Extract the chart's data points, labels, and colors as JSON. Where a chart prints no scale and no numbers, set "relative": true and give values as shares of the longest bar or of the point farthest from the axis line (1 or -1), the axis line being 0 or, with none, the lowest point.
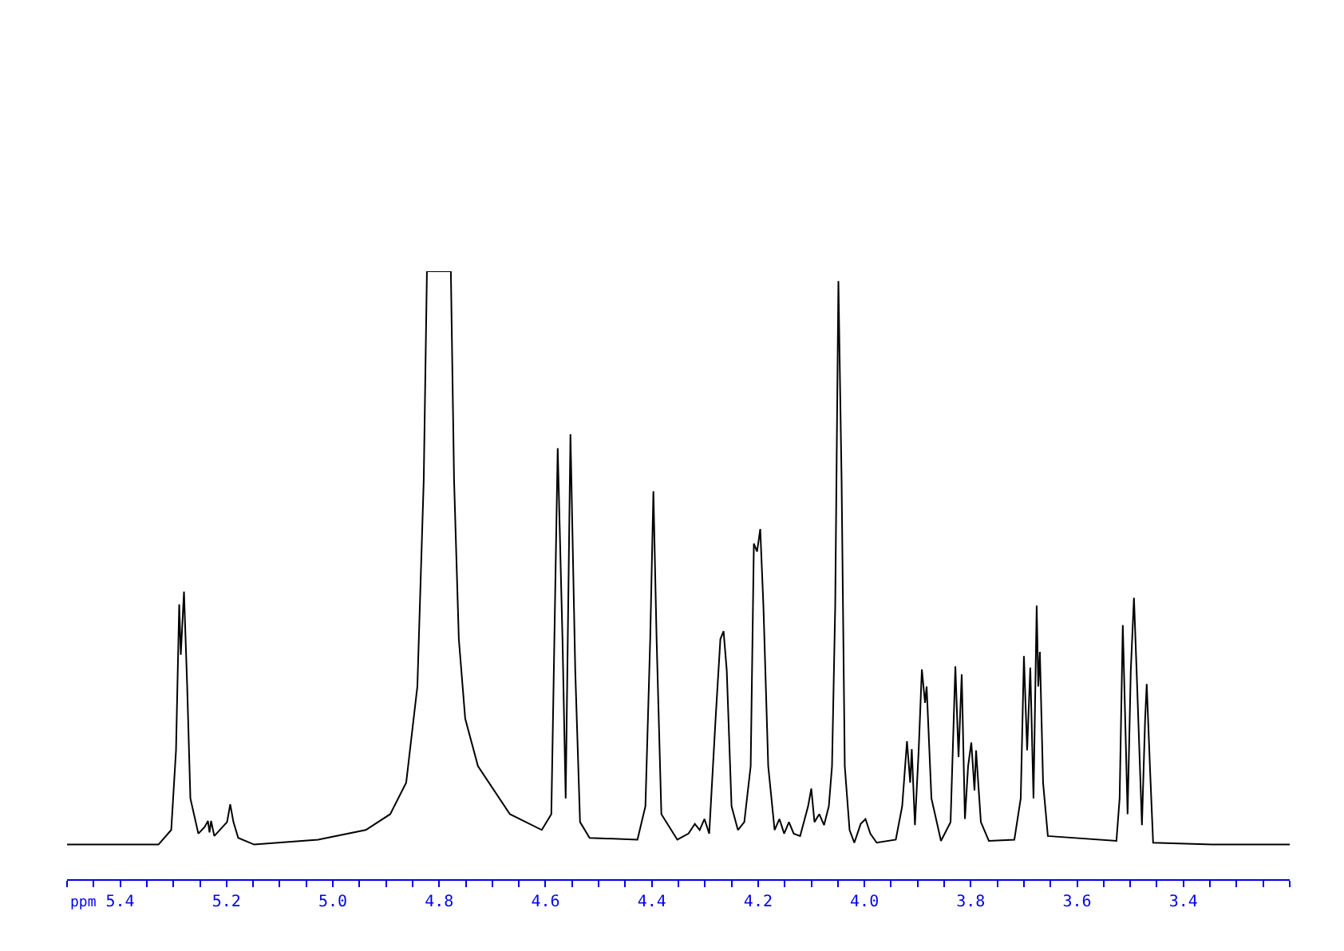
{
  "chart_data": {
    "type": "line",
    "relative": true,
    "xlabel": "ppm",
    "grid": false,
    "marker": "none",
    "line_style": "solid",
    "xlim": [
      5.5,
      3.2
    ],
    "xticks": [
      5.4,
      5.2,
      {
        "value": 5,
        "label": "5.0"
      },
      4.8,
      4.6,
      4.4,
      4.2,
      {
        "value": 4,
        "label": "4.0"
      },
      3.8,
      3.6,
      3.4
    ],
    "series": [
      {
        "color": "#000000",
        "x": [
          5.5,
          5.328,
          5.304,
          5.295,
          5.289,
          5.286,
          5.28,
          5.274,
          5.268,
          5.253,
          5.241,
          5.235,
          5.232,
          5.229,
          5.223,
          5.199,
          5.193,
          5.187,
          5.178,
          5.148,
          5.028,
          4.938,
          4.892,
          4.862,
          4.841,
          4.829,
          4.823,
          4.778,
          4.772,
          4.763,
          4.751,
          4.727,
          4.667,
          4.607,
          4.589,
          4.577,
          4.568,
          4.562,
          4.553,
          4.544,
          4.535,
          4.517,
          4.427,
          4.412,
          4.403,
          4.397,
          4.391,
          4.382,
          4.352,
          4.331,
          4.319,
          4.31,
          4.301,
          4.292,
          4.28,
          4.271,
          4.265,
          4.259,
          4.25,
          4.238,
          4.226,
          4.214,
          4.208,
          4.202,
          4.196,
          4.19,
          4.181,
          4.169,
          4.16,
          4.151,
          4.142,
          4.133,
          4.121,
          4.106,
          4.1,
          4.094,
          4.085,
          4.076,
          4.067,
          4.061,
          4.055,
          4.049,
          4.043,
          4.037,
          4.028,
          4.019,
          4.007,
          3.998,
          3.989,
          3.977,
          3.941,
          3.929,
          3.92,
          3.914,
          3.911,
          3.905,
          3.898,
          3.892,
          3.886,
          3.883,
          3.874,
          3.856,
          3.838,
          3.829,
          3.823,
          3.817,
          3.811,
          3.805,
          3.799,
          3.793,
          3.79,
          3.781,
          3.766,
          3.718,
          3.706,
          3.7,
          3.694,
          3.688,
          3.682,
          3.676,
          3.673,
          3.67,
          3.664,
          3.655,
          3.526,
          3.52,
          3.514,
          3.508,
          3.505,
          3.499,
          3.493,
          3.487,
          3.478,
          3.472,
          3.469,
          3.463,
          3.457,
          3.346,
          3.2
        ],
        "values": [
          0.057,
          0.057,
          0.081,
          0.212,
          0.452,
          0.369,
          0.473,
          0.317,
          0.133,
          0.075,
          0.086,
          0.096,
          0.077,
          0.096,
          0.071,
          0.094,
          0.123,
          0.094,
          0.068,
          0.057,
          0.065,
          0.081,
          0.107,
          0.159,
          0.317,
          0.657,
          1,
          1,
          0.657,
          0.395,
          0.264,
          0.186,
          0.107,
          0.081,
          0.107,
          0.709,
          0.395,
          0.133,
          0.732,
          0.343,
          0.094,
          0.068,
          0.065,
          0.12,
          0.395,
          0.638,
          0.395,
          0.107,
          0.065,
          0.075,
          0.091,
          0.081,
          0.099,
          0.075,
          0.264,
          0.395,
          0.408,
          0.343,
          0.12,
          0.081,
          0.094,
          0.186,
          0.552,
          0.539,
          0.576,
          0.448,
          0.186,
          0.081,
          0.099,
          0.075,
          0.094,
          0.075,
          0.071,
          0.12,
          0.149,
          0.094,
          0.107,
          0.089,
          0.12,
          0.186,
          0.448,
          0.984,
          0.657,
          0.186,
          0.081,
          0.06,
          0.091,
          0.099,
          0.075,
          0.06,
          0.065,
          0.12,
          0.227,
          0.159,
          0.214,
          0.089,
          0.212,
          0.345,
          0.29,
          0.317,
          0.133,
          0.063,
          0.094,
          0.35,
          0.201,
          0.337,
          0.099,
          0.186,
          0.225,
          0.146,
          0.212,
          0.094,
          0.063,
          0.065,
          0.133,
          0.367,
          0.212,
          0.348,
          0.133,
          0.45,
          0.317,
          0.374,
          0.159,
          0.071,
          0.063,
          0.133,
          0.418,
          0.212,
          0.107,
          0.343,
          0.463,
          0.317,
          0.089,
          0.264,
          0.321,
          0.186,
          0.06,
          0.057,
          0.057
        ]
      }
    ]
  }
}
